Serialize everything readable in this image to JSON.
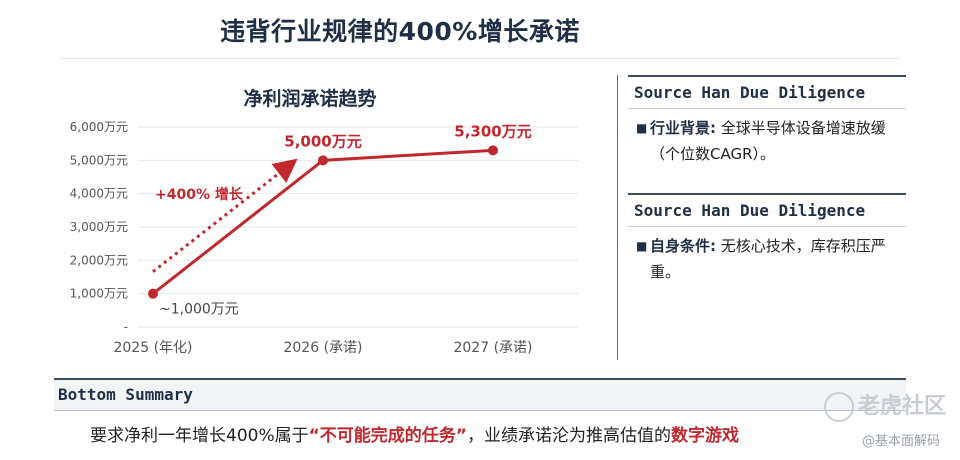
{
  "page": {
    "title": "违背行业规律的400%增长承诺"
  },
  "chart_data": {
    "type": "line",
    "title": "净利润承诺趋势",
    "categories": [
      "2025 (年化)",
      "2026 (承诺)",
      "2027 (承诺)"
    ],
    "values": [
      1000,
      5000,
      5300
    ],
    "unit": "万元",
    "ylim": [
      0,
      6000
    ],
    "yticks": [
      "-",
      "1,000万元",
      "2,000万元",
      "3,000万元",
      "4,000万元",
      "5,000万元",
      "6,000万元"
    ],
    "point_labels": [
      "~1,000万元",
      "5,000万元",
      "5,300万元"
    ],
    "annotation": "+400% 增长",
    "grid": true,
    "line_color": "#c0282e"
  },
  "side": {
    "sections": [
      {
        "header": "Source Han Due Diligence",
        "label": "行业背景:",
        "text": "全球半导体设备增速放缓（个位数CAGR）。"
      },
      {
        "header": "Source Han Due Diligence",
        "label": "自身条件:",
        "text": "无核心技术，库存积压严重。"
      }
    ]
  },
  "bottom": {
    "header": "Bottom Summary",
    "text_before": "要求净利一年增长400%属于",
    "highlight1": "“不可能完成的任务”",
    "text_middle": "，业绩承诺沦为推高估值的",
    "highlight2": "数字游戏"
  },
  "watermark": {
    "brand": "老虎社区",
    "handle": "@基本面解码"
  }
}
